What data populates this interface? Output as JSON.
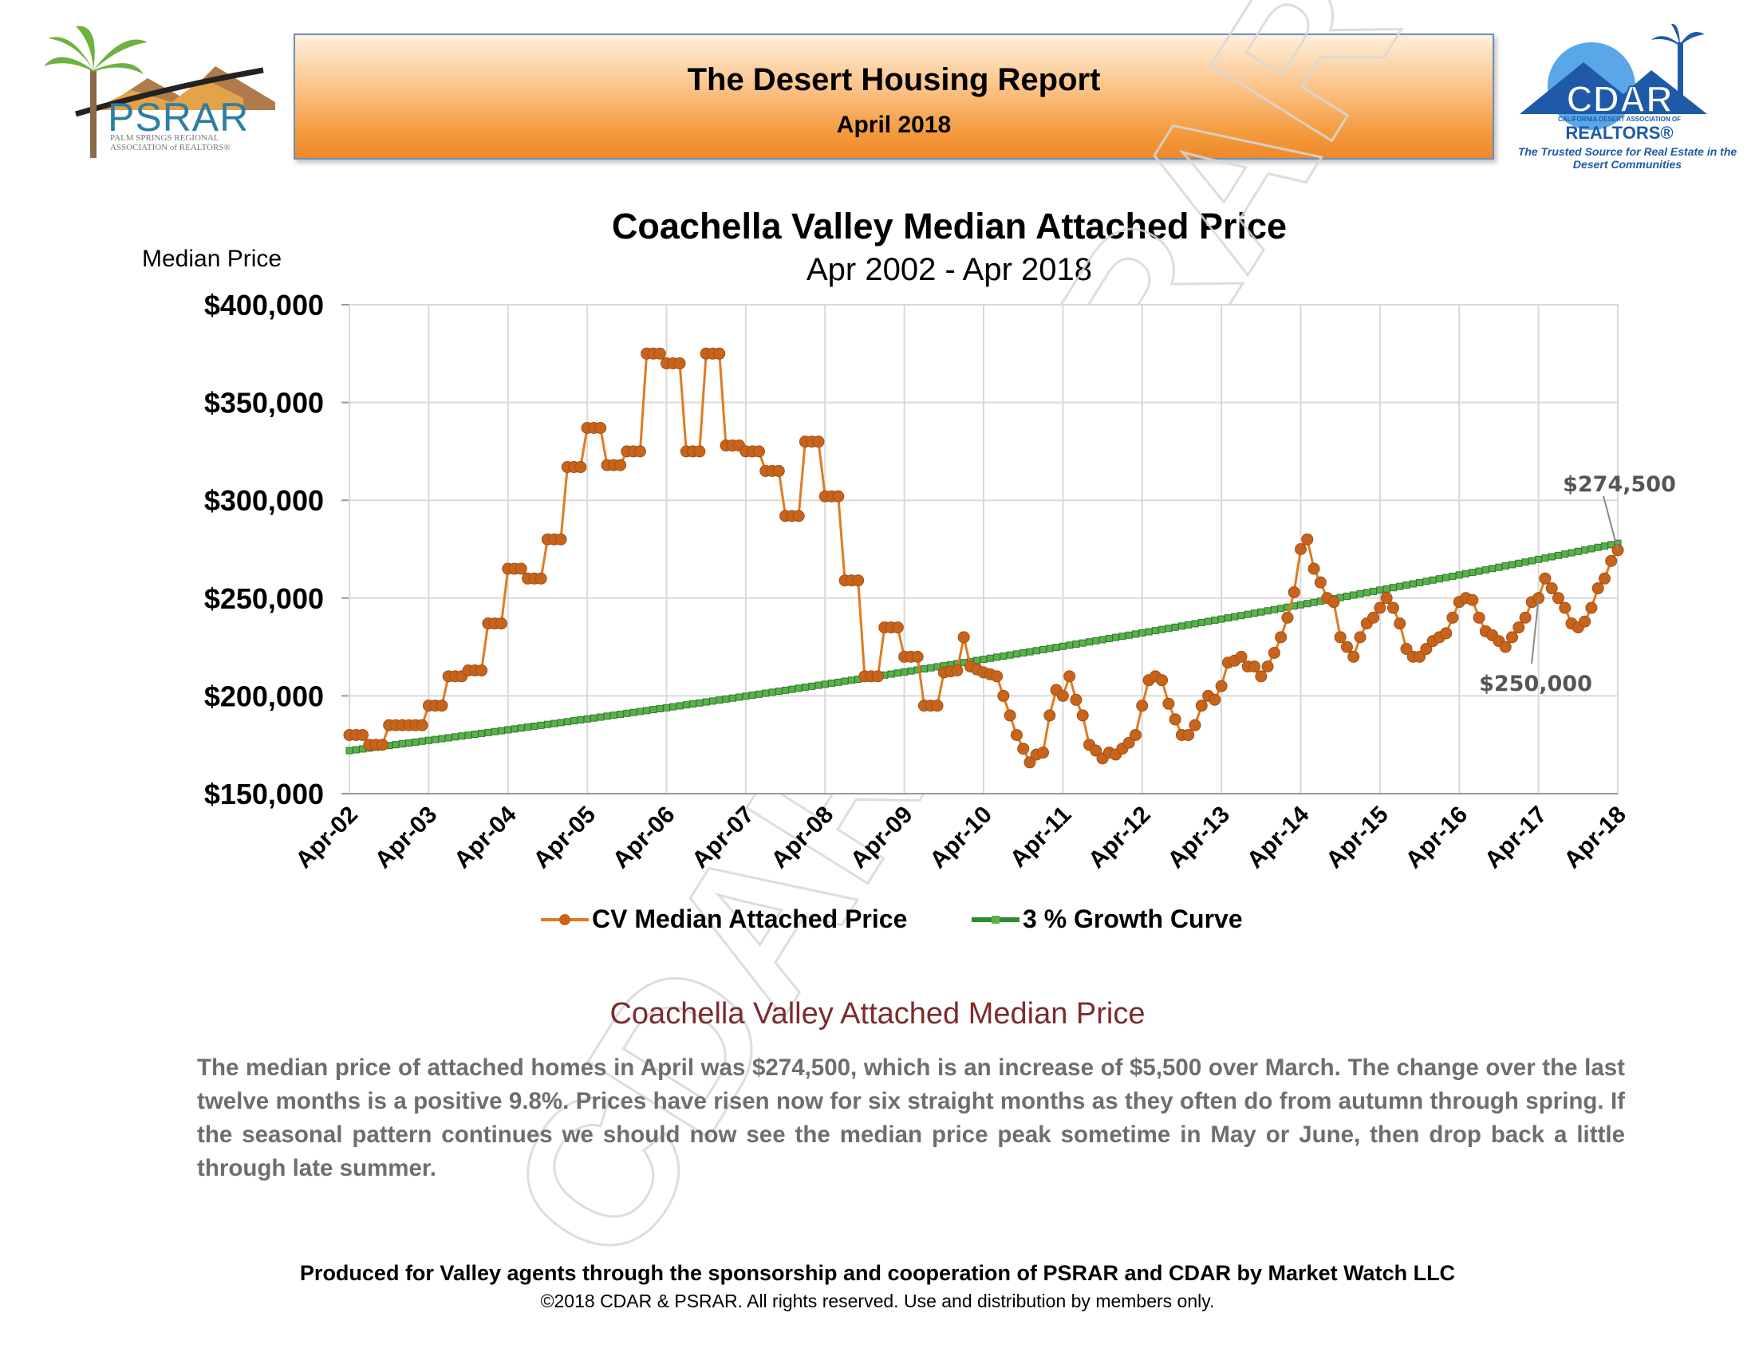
{
  "header": {
    "title": "The Desert Housing Report",
    "date": "April 2018",
    "colors": {
      "banner_top": "#fef0dc",
      "banner_bottom": "#ee8a2b",
      "banner_border": "#6b8fb5"
    }
  },
  "logos": {
    "left": {
      "text": "PSRAR",
      "subtext": "PALM SPRINGS REGIONAL ASSOCIATION of REALTORS®",
      "icon": "palm-tree-icon"
    },
    "right": {
      "text": "CDAR",
      "subtext": "REALTORS®",
      "small_text": "CALIFORNIA DESERT ASSOCIATION OF",
      "tagline": "The Trusted Source for Real Estate in the Desert Communities",
      "icon": "house-mountain-icon"
    }
  },
  "watermark": "CDAR&PSRAR",
  "chart_data": {
    "type": "line",
    "title": "Coachella Valley Median Attached Price",
    "subtitle": "Apr 2002 - Apr 2018",
    "ylabel": "Median Price",
    "ylim": [
      150000,
      400000
    ],
    "y_ticks": [
      {
        "value": 400000,
        "label": "$400,000"
      },
      {
        "value": 350000,
        "label": "$350,000"
      },
      {
        "value": 300000,
        "label": "$300,000"
      },
      {
        "value": 250000,
        "label": "$250,000"
      },
      {
        "value": 200000,
        "label": "$200,000"
      },
      {
        "value": 150000,
        "label": "$150,000"
      }
    ],
    "x_ticks": [
      "Apr-02",
      "Apr-03",
      "Apr-04",
      "Apr-05",
      "Apr-06",
      "Apr-07",
      "Apr-08",
      "Apr-09",
      "Apr-10",
      "Apr-11",
      "Apr-12",
      "Apr-13",
      "Apr-14",
      "Apr-15",
      "Apr-16",
      "Apr-17",
      "Apr-18"
    ],
    "grid": true,
    "legend_position": "bottom",
    "series": [
      {
        "name": "CV Median Attached Price",
        "color": "#e07b20",
        "marker_color": "#c8641a",
        "anchors": [
          [
            "Apr-02",
            180000
          ],
          [
            "Jun-02",
            180000
          ],
          [
            "Jul-02",
            175000
          ],
          [
            "Sep-02",
            175000
          ],
          [
            "Oct-02",
            185000
          ],
          [
            "Mar-03",
            185000
          ],
          [
            "Apr-03",
            195000
          ],
          [
            "Jun-03",
            195000
          ],
          [
            "Jul-03",
            210000
          ],
          [
            "Sep-03",
            210000
          ],
          [
            "Oct-03",
            213000
          ],
          [
            "Dec-03",
            213000
          ],
          [
            "Jan-04",
            237000
          ],
          [
            "Mar-04",
            237000
          ],
          [
            "Apr-04",
            265000
          ],
          [
            "Jun-04",
            265000
          ],
          [
            "Jul-04",
            260000
          ],
          [
            "Sep-04",
            260000
          ],
          [
            "Oct-04",
            280000
          ],
          [
            "Dec-04",
            280000
          ],
          [
            "Jan-05",
            317000
          ],
          [
            "Mar-05",
            317000
          ],
          [
            "Apr-05",
            337000
          ],
          [
            "Jun-05",
            337000
          ],
          [
            "Jul-05",
            318000
          ],
          [
            "Sep-05",
            318000
          ],
          [
            "Oct-05",
            325000
          ],
          [
            "Dec-05",
            325000
          ],
          [
            "Jan-06",
            375000
          ],
          [
            "Mar-06",
            375000
          ],
          [
            "Apr-06",
            370000
          ],
          [
            "Jun-06",
            370000
          ],
          [
            "Jul-06",
            325000
          ],
          [
            "Sep-06",
            325000
          ],
          [
            "Oct-06",
            375000
          ],
          [
            "Dec-06",
            375000
          ],
          [
            "Jan-07",
            328000
          ],
          [
            "Mar-07",
            328000
          ],
          [
            "Apr-07",
            325000
          ],
          [
            "Jun-07",
            325000
          ],
          [
            "Jul-07",
            315000
          ],
          [
            "Sep-07",
            315000
          ],
          [
            "Oct-07",
            292000
          ],
          [
            "Dec-07",
            292000
          ],
          [
            "Jan-08",
            330000
          ],
          [
            "Mar-08",
            330000
          ],
          [
            "Apr-08",
            302000
          ],
          [
            "Jun-08",
            302000
          ],
          [
            "Jul-08",
            259000
          ],
          [
            "Sep-08",
            259000
          ],
          [
            "Oct-08",
            210000
          ],
          [
            "Dec-08",
            210000
          ],
          [
            "Jan-09",
            235000
          ],
          [
            "Mar-09",
            235000
          ],
          [
            "Apr-09",
            220000
          ],
          [
            "Jun-09",
            220000
          ],
          [
            "Jul-09",
            195000
          ],
          [
            "Sep-09",
            195000
          ],
          [
            "Oct-09",
            212000
          ],
          [
            "Dec-09",
            213000
          ],
          [
            "Jan-10",
            230000
          ],
          [
            "Feb-10",
            215000
          ],
          [
            "Apr-10",
            212000
          ],
          [
            "Jun-10",
            210000
          ],
          [
            "Sep-10",
            180000
          ],
          [
            "Nov-10",
            166000
          ],
          [
            "Dec-10",
            170000
          ],
          [
            "Jan-11",
            171000
          ],
          [
            "Feb-11",
            190000
          ],
          [
            "Mar-11",
            203000
          ],
          [
            "Apr-11",
            200000
          ],
          [
            "May-11",
            210000
          ],
          [
            "Jun-11",
            198000
          ],
          [
            "Jul-11",
            190000
          ],
          [
            "Aug-11",
            175000
          ],
          [
            "Sep-11",
            172000
          ],
          [
            "Oct-11",
            168000
          ],
          [
            "Nov-11",
            171000
          ],
          [
            "Dec-11",
            170000
          ],
          [
            "Feb-12",
            176000
          ],
          [
            "Mar-12",
            180000
          ],
          [
            "Apr-12",
            195000
          ],
          [
            "May-12",
            208000
          ],
          [
            "Jun-12",
            210000
          ],
          [
            "Jul-12",
            208000
          ],
          [
            "Aug-12",
            196000
          ],
          [
            "Sep-12",
            188000
          ],
          [
            "Oct-12",
            180000
          ],
          [
            "Nov-12",
            180000
          ],
          [
            "Dec-12",
            185000
          ],
          [
            "Jan-13",
            195000
          ],
          [
            "Feb-13",
            200000
          ],
          [
            "Mar-13",
            198000
          ],
          [
            "Apr-13",
            205000
          ],
          [
            "May-13",
            217000
          ],
          [
            "Jun-13",
            218000
          ],
          [
            "Jul-13",
            220000
          ],
          [
            "Aug-13",
            215000
          ],
          [
            "Sep-13",
            215000
          ],
          [
            "Oct-13",
            210000
          ],
          [
            "Nov-13",
            215000
          ],
          [
            "Dec-13",
            222000
          ],
          [
            "Jan-14",
            230000
          ],
          [
            "Feb-14",
            240000
          ],
          [
            "Mar-14",
            253000
          ],
          [
            "Apr-14",
            275000
          ],
          [
            "May-14",
            280000
          ],
          [
            "Jun-14",
            265000
          ],
          [
            "Jul-14",
            258000
          ],
          [
            "Aug-14",
            250000
          ],
          [
            "Sep-14",
            248000
          ],
          [
            "Oct-14",
            230000
          ],
          [
            "Nov-14",
            225000
          ],
          [
            "Dec-14",
            220000
          ],
          [
            "Jan-15",
            230000
          ],
          [
            "Feb-15",
            237000
          ],
          [
            "Mar-15",
            240000
          ],
          [
            "Apr-15",
            245000
          ],
          [
            "May-15",
            250000
          ],
          [
            "Jun-15",
            245000
          ],
          [
            "Jul-15",
            237000
          ],
          [
            "Aug-15",
            224000
          ],
          [
            "Sep-15",
            220000
          ],
          [
            "Oct-15",
            220000
          ],
          [
            "Nov-15",
            224000
          ],
          [
            "Dec-15",
            228000
          ],
          [
            "Jan-16",
            230000
          ],
          [
            "Feb-16",
            232000
          ],
          [
            "Mar-16",
            240000
          ],
          [
            "Apr-16",
            248000
          ],
          [
            "May-16",
            250000
          ],
          [
            "Jun-16",
            249000
          ],
          [
            "Jul-16",
            240000
          ],
          [
            "Aug-16",
            233000
          ],
          [
            "Sep-16",
            231000
          ],
          [
            "Oct-16",
            228000
          ],
          [
            "Nov-16",
            225000
          ],
          [
            "Dec-16",
            230000
          ],
          [
            "Jan-17",
            235000
          ],
          [
            "Feb-17",
            240000
          ],
          [
            "Mar-17",
            248000
          ],
          [
            "Apr-17",
            250000
          ],
          [
            "May-17",
            260000
          ],
          [
            "Jun-17",
            255000
          ],
          [
            "Jul-17",
            250000
          ],
          [
            "Aug-17",
            245000
          ],
          [
            "Sep-17",
            237000
          ],
          [
            "Oct-17",
            235000
          ],
          [
            "Nov-17",
            238000
          ],
          [
            "Dec-17",
            245000
          ],
          [
            "Jan-18",
            255000
          ],
          [
            "Feb-18",
            260000
          ],
          [
            "Mar-18",
            269000
          ],
          [
            "Apr-18",
            274500
          ]
        ]
      },
      {
        "name": "3 % Growth Curve",
        "color": "#2e8b2e",
        "marker_color": "#5ab04a",
        "start": [
          "Apr-02",
          172000
        ],
        "end": [
          "Apr-18",
          278000
        ]
      }
    ],
    "annotations": [
      {
        "label": "$274,500",
        "at": [
          "Apr-18",
          274500
        ]
      },
      {
        "label": "$250,000",
        "at": [
          "Apr-17",
          250000
        ]
      }
    ]
  },
  "commentary": {
    "title": "Coachella Valley Attached Median Price",
    "body": "The median price of attached homes in April was $274,500, which is an increase of $5,500 over March. The change over the last twelve months is a positive 9.8%. Prices have risen now for six straight months as they often do from autumn through spring. If the seasonal pattern continues we should now see the median price peak sometime in May or June, then drop back a little through late summer."
  },
  "footer": {
    "credit": "Produced for Valley agents through the sponsorship and cooperation of PSRAR and CDAR by Market Watch LLC",
    "copyright": "©2018 CDAR & PSRAR.  All rights reserved.  Use and distribution by members only."
  }
}
